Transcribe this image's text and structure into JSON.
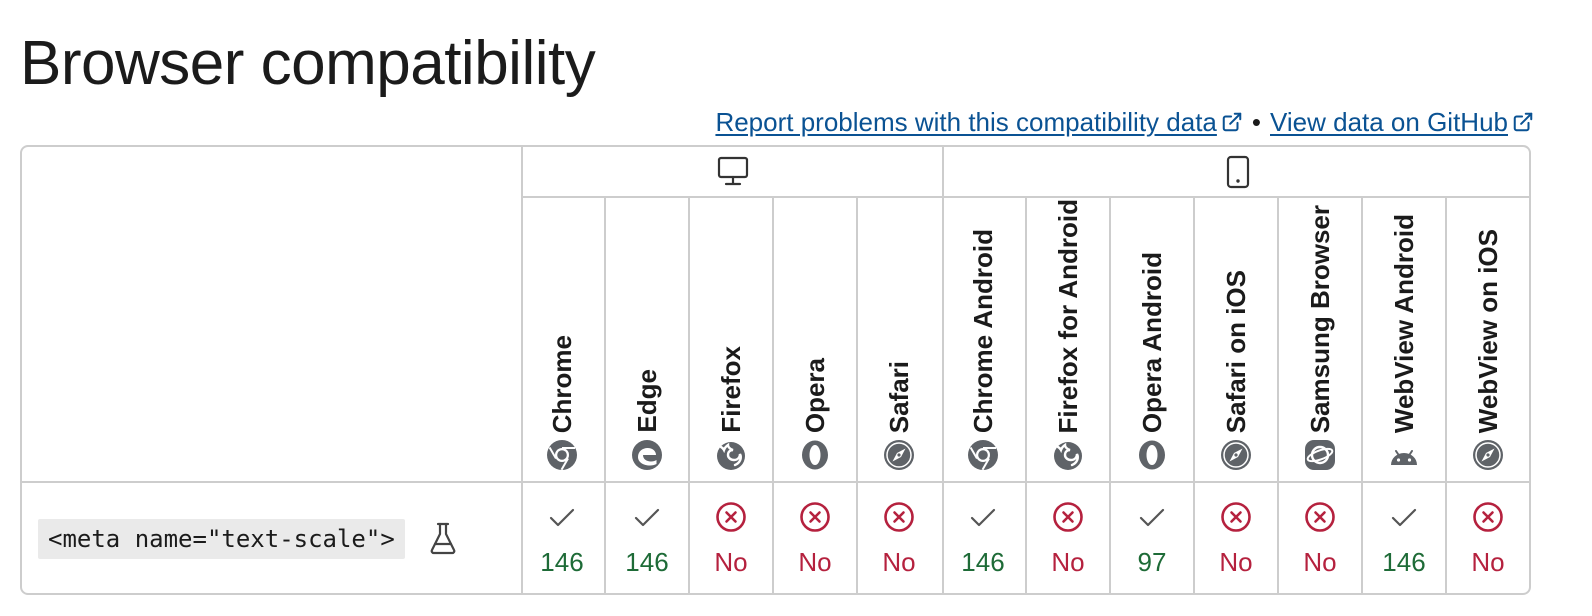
{
  "page": {
    "title": "Browser compatibility"
  },
  "links": {
    "report_label": "Report problems with this compatibility data",
    "separator": "•",
    "github_label": "View data on GitHub"
  },
  "platforms": [
    {
      "name": "desktop",
      "icon": "desktop-monitor-icon"
    },
    {
      "name": "mobile",
      "icon": "mobile-phone-icon"
    }
  ],
  "browsers": [
    {
      "name": "Chrome",
      "icon": "chrome-icon"
    },
    {
      "name": "Edge",
      "icon": "edge-icon"
    },
    {
      "name": "Firefox",
      "icon": "firefox-icon"
    },
    {
      "name": "Opera",
      "icon": "opera-icon"
    },
    {
      "name": "Safari",
      "icon": "safari-icon"
    },
    {
      "name": "Chrome Android",
      "icon": "chrome-icon"
    },
    {
      "name": "Firefox for Android",
      "icon": "firefox-icon"
    },
    {
      "name": "Opera Android",
      "icon": "opera-icon"
    },
    {
      "name": "Safari on iOS",
      "icon": "safari-icon"
    },
    {
      "name": "Samsung Browser",
      "icon": "samsung-internet-icon"
    },
    {
      "name": "WebView Android",
      "icon": "android-icon"
    },
    {
      "name": "WebView on iOS",
      "icon": "safari-icon"
    }
  ],
  "feature": {
    "code": "<meta name=\"text-scale\">",
    "experimental_icon": "flask-icon"
  },
  "support": [
    {
      "supported": true,
      "value": "146"
    },
    {
      "supported": true,
      "value": "146"
    },
    {
      "supported": false,
      "value": "No"
    },
    {
      "supported": false,
      "value": "No"
    },
    {
      "supported": false,
      "value": "No"
    },
    {
      "supported": true,
      "value": "146"
    },
    {
      "supported": false,
      "value": "No"
    },
    {
      "supported": true,
      "value": "97"
    },
    {
      "supported": false,
      "value": "No"
    },
    {
      "supported": false,
      "value": "No"
    },
    {
      "supported": true,
      "value": "146"
    },
    {
      "supported": false,
      "value": "No"
    }
  ],
  "colors": {
    "link": "#0a5293",
    "yes": "#1e6b37",
    "no": "#b5213e",
    "border": "#cdcdcd",
    "code_bg": "#eaeaea"
  }
}
